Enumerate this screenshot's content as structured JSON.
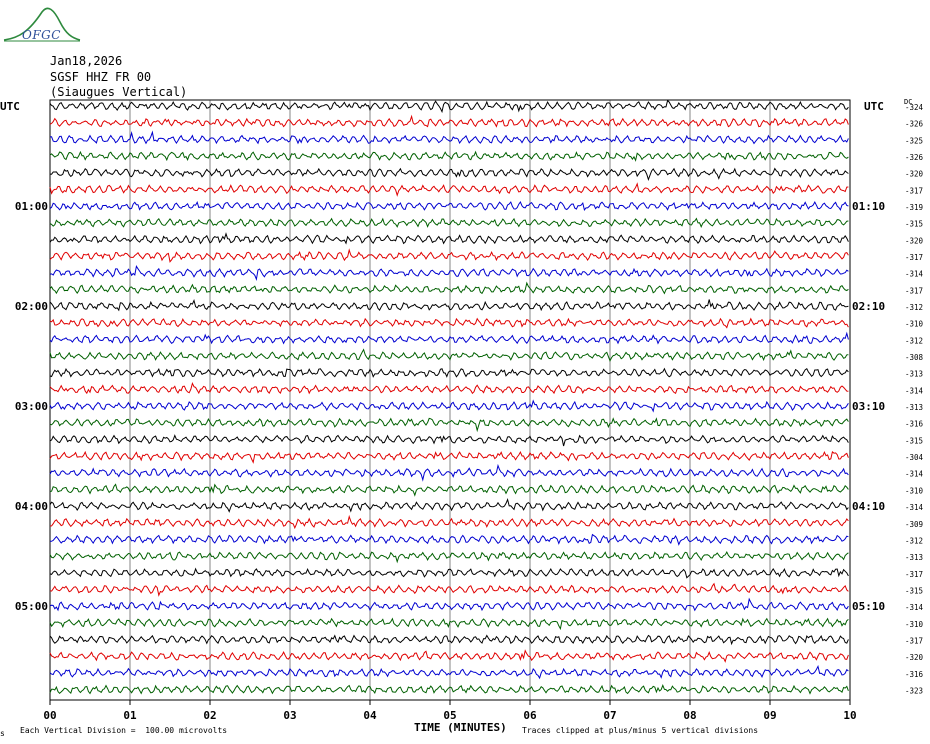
{
  "logo": {
    "text": "OFGC"
  },
  "header": {
    "date": "Jan18,2026",
    "station": "SGSF HHZ FR 00",
    "site": "(Siaugues Vertical)"
  },
  "axis": {
    "left_unit": "UTC",
    "right_unit": "UTC",
    "dc_label": "DC",
    "xlabel": "TIME (MINUTES)"
  },
  "footer": {
    "scale_note": "Each Vertical Division =  100.00 microvolts",
    "clip_note": "Traces clipped at plus/minus 5 vertical divisions",
    "corner_mark": "s"
  },
  "colors": {
    "trace_cycle": [
      "#000000",
      "#e00000",
      "#0000d0",
      "#006000"
    ],
    "grid": "#000000",
    "logo": "#2e8a3e"
  },
  "chart_data": {
    "type": "line",
    "title": "Jan18,2026 SGSF HHZ FR 00 (Siaugues Vertical)",
    "xlabel": "TIME (MINUTES)",
    "x_ticks": [
      "00",
      "01",
      "02",
      "03",
      "04",
      "05",
      "06",
      "07",
      "08",
      "09",
      "10"
    ],
    "xlim": [
      0,
      10
    ],
    "minutes_per_line": 10,
    "grid": true,
    "left_time_labels": [
      {
        "line": 6,
        "label": "01:00"
      },
      {
        "line": 12,
        "label": "02:00"
      },
      {
        "line": 18,
        "label": "03:00"
      },
      {
        "line": 24,
        "label": "04:00"
      },
      {
        "line": 30,
        "label": "05:00"
      }
    ],
    "right_time_labels": [
      {
        "line": 6,
        "label": "01:10"
      },
      {
        "line": 12,
        "label": "02:10"
      },
      {
        "line": 18,
        "label": "03:10"
      },
      {
        "line": 24,
        "label": "04:10"
      },
      {
        "line": 30,
        "label": "05:10"
      }
    ],
    "dc_offsets": [
      -324,
      -326,
      -325,
      -326,
      -320,
      -317,
      -319,
      -315,
      -320,
      -317,
      -314,
      -317,
      -312,
      -310,
      -312,
      -308,
      -313,
      -314,
      -313,
      -316,
      -315,
      -304,
      -314,
      -310,
      -314,
      -309,
      -312,
      -313,
      -317,
      -315,
      -314,
      -310,
      -317,
      -320,
      -316,
      -323
    ],
    "trace_count": 36,
    "vertical_division_microvolts": 100.0,
    "clip_divisions": 5
  }
}
